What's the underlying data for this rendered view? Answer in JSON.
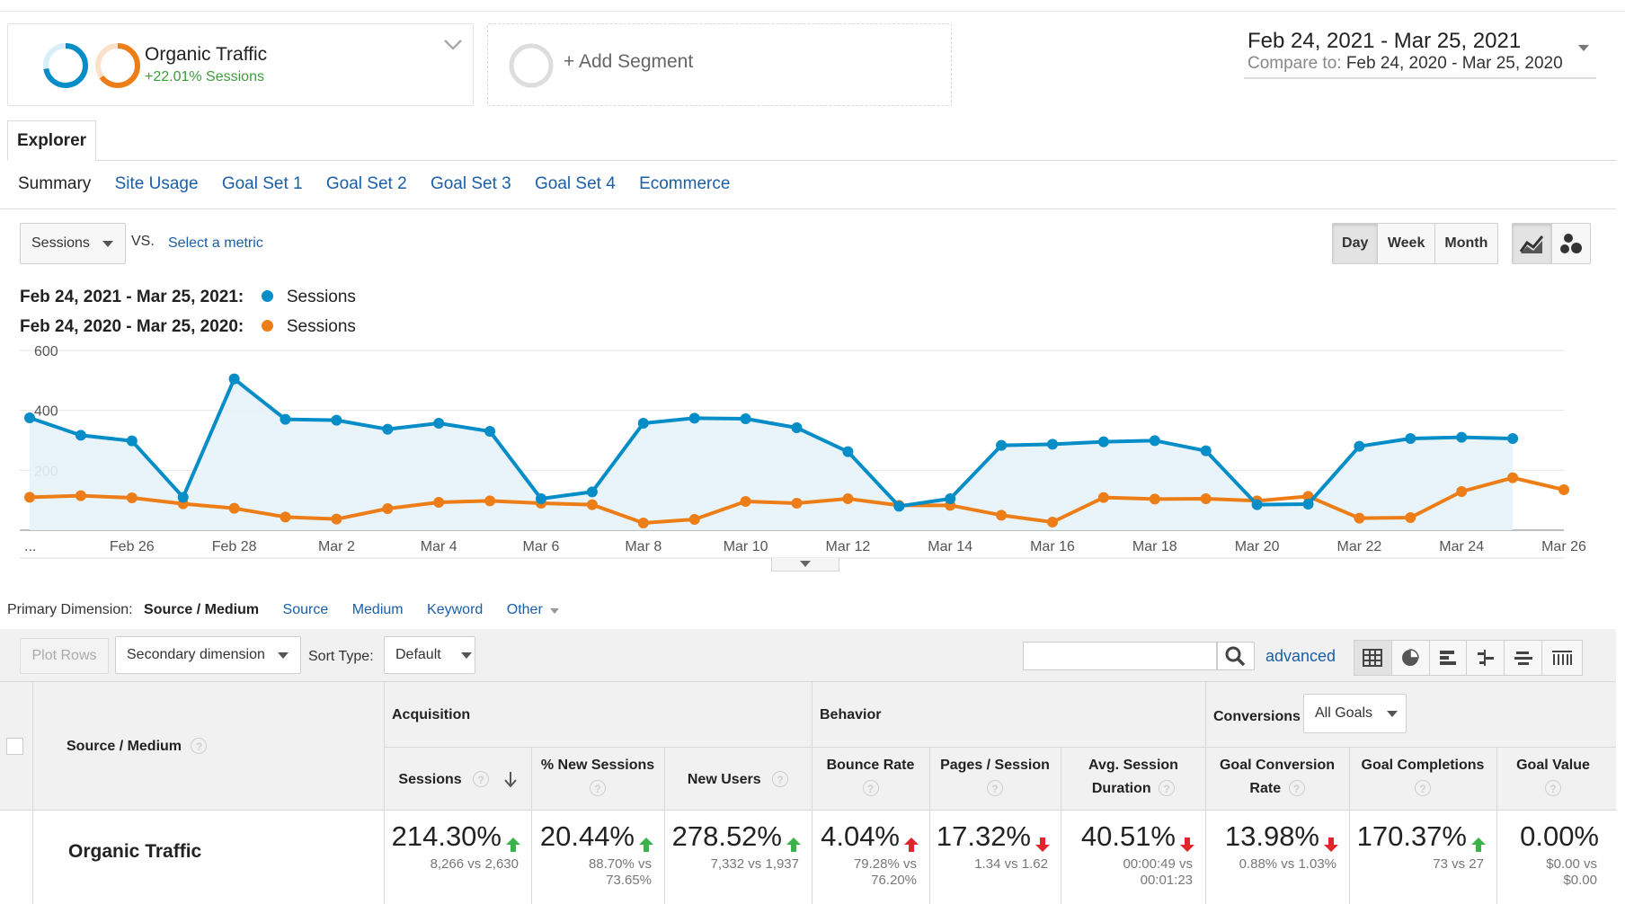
{
  "segments": {
    "primary": {
      "name": "Organic Traffic",
      "change": "+22.01% Sessions"
    },
    "add": {
      "label": "+ Add Segment"
    }
  },
  "date_range": {
    "main": "Feb 24, 2021 - Mar 25, 2021",
    "compare_label": "Compare to:",
    "compare": "Feb 24, 2020 - Mar 25, 2020"
  },
  "explorer_tab": "Explorer",
  "subtabs": [
    "Summary",
    "Site Usage",
    "Goal Set 1",
    "Goal Set 2",
    "Goal Set 3",
    "Goal Set 4",
    "Ecommerce"
  ],
  "metric_select": {
    "value": "Sessions",
    "vs": "VS.",
    "select_metric": "Select a metric"
  },
  "granularity": [
    "Day",
    "Week",
    "Month"
  ],
  "legend": [
    {
      "range": "Feb 24, 2021 - Mar 25, 2021:",
      "metric": "Sessions",
      "color": "#058dc7"
    },
    {
      "range": "Feb 24, 2020 - Mar 25, 2020:",
      "metric": "Sessions",
      "color": "#ed7e17"
    }
  ],
  "chart_data": {
    "type": "line",
    "y_ticks": [
      "600",
      "400",
      "200"
    ],
    "x_ticks": [
      "...",
      "Feb 26",
      "Feb 28",
      "Mar 2",
      "Mar 4",
      "Mar 6",
      "Mar 8",
      "Mar 10",
      "Mar 12",
      "Mar 14",
      "Mar 16",
      "Mar 18",
      "Mar 20",
      "Mar 22",
      "Mar 24",
      "Mar 26"
    ],
    "ylim": [
      0,
      600
    ],
    "grid": true,
    "series": [
      {
        "name": "Sessions",
        "color": "#058dc7",
        "values": [
          375,
          317,
          298,
          110,
          505,
          370,
          367,
          337,
          357,
          330,
          105,
          128,
          357,
          374,
          372,
          342,
          262,
          80,
          105,
          283,
          287,
          295,
          299,
          265,
          85,
          87,
          280,
          306,
          310,
          306
        ]
      },
      {
        "name": "Sessions",
        "color": "#ed7e17",
        "values": [
          110,
          115,
          108,
          88,
          73,
          44,
          37,
          72,
          93,
          98,
          90,
          85,
          24,
          36,
          96,
          90,
          105,
          83,
          83,
          50,
          27,
          109,
          104,
          105,
          98,
          113,
          40,
          42,
          129,
          175,
          135
        ]
      }
    ]
  },
  "primary_dimension": {
    "label": "Primary Dimension:",
    "options": [
      "Source / Medium",
      "Source",
      "Medium",
      "Keyword",
      "Other"
    ]
  },
  "toolbar": {
    "plot_rows": "Plot Rows",
    "secondary_dimension": "Secondary dimension",
    "sort_type_label": "Sort Type:",
    "sort_type_value": "Default",
    "search_placeholder": "",
    "advanced": "advanced"
  },
  "table": {
    "dimension_header": "Source / Medium",
    "groups": {
      "acquisition": "Acquisition",
      "behavior": "Behavior",
      "conversions": "Conversions",
      "goals_select": "All Goals"
    },
    "columns": [
      "Sessions",
      "% New Sessions",
      "New Users",
      "Bounce Rate",
      "Pages / Session",
      "Avg. Session Duration",
      "Goal Conversion Rate",
      "Goal Completions",
      "Goal Value"
    ],
    "row": {
      "label": "Organic Traffic",
      "cells": [
        {
          "value": "214.30%",
          "trend": "up",
          "good": true,
          "sub": "8,266 vs 2,630"
        },
        {
          "value": "20.44%",
          "trend": "up",
          "good": true,
          "sub": "88.70% vs 73.65%"
        },
        {
          "value": "278.52%",
          "trend": "up",
          "good": true,
          "sub": "7,332 vs 1,937"
        },
        {
          "value": "4.04%",
          "trend": "up",
          "good": false,
          "sub": "79.28% vs 76.20%"
        },
        {
          "value": "17.32%",
          "trend": "down",
          "good": false,
          "sub": "1.34 vs 1.62"
        },
        {
          "value": "40.51%",
          "trend": "down",
          "good": false,
          "sub": "00:00:49 vs 00:01:23"
        },
        {
          "value": "13.98%",
          "trend": "down",
          "good": false,
          "sub": "0.88% vs 1.03%"
        },
        {
          "value": "170.37%",
          "trend": "up",
          "good": true,
          "sub": "73 vs 27"
        },
        {
          "value": "0.00%",
          "trend": "none",
          "good": true,
          "sub": "$0.00 vs $0.00"
        }
      ]
    }
  }
}
